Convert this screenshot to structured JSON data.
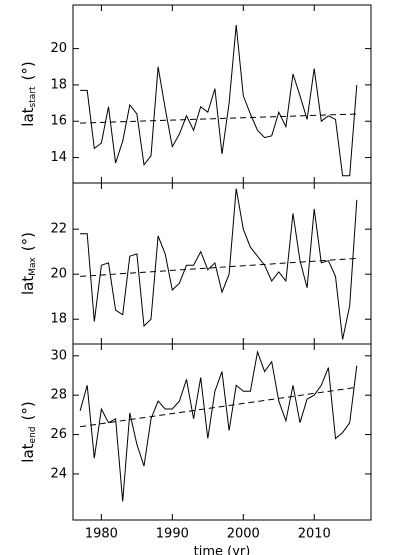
{
  "chart_data": [
    {
      "type": "line",
      "ylabel": {
        "main": "lat",
        "sub": "start",
        "unit": "(°)"
      },
      "x": [
        1977,
        1978,
        1979,
        1980,
        1981,
        1982,
        1983,
        1984,
        1985,
        1986,
        1987,
        1988,
        1989,
        1990,
        1991,
        1992,
        1993,
        1994,
        1995,
        1996,
        1997,
        1998,
        1999,
        2000,
        2001,
        2002,
        2003,
        2004,
        2005,
        2006,
        2007,
        2008,
        2009,
        2010,
        2011,
        2012,
        2013,
        2014,
        2015,
        2016
      ],
      "series": [
        {
          "color": "#000000",
          "values": [
            17.7,
            17.7,
            14.5,
            14.8,
            16.8,
            13.7,
            14.9,
            16.9,
            16.4,
            13.6,
            14.1,
            19.0,
            16.7,
            14.6,
            15.3,
            16.3,
            15.5,
            16.8,
            16.5,
            17.8,
            14.2,
            17.0,
            21.3,
            17.4,
            16.4,
            15.5,
            15.1,
            15.2,
            16.5,
            15.7,
            18.6,
            17.4,
            16.1,
            18.9,
            16.0,
            16.3,
            16.1,
            13.0,
            13.0,
            18.0
          ]
        }
      ],
      "trend": {
        "x": [
          1977,
          2016
        ],
        "values": [
          15.9,
          16.4
        ],
        "color": "#000000",
        "style": "dashed"
      },
      "xlim": [
        1976,
        2018
      ],
      "xticks": [
        1980,
        1990,
        2000,
        2010
      ],
      "ylim": [
        12.6,
        22.4
      ],
      "yticks": [
        14,
        16,
        18,
        20
      ]
    },
    {
      "type": "line",
      "ylabel": {
        "main": "lat",
        "sub": "Max",
        "unit": "(°)"
      },
      "x": [
        1977,
        1978,
        1979,
        1980,
        1981,
        1982,
        1983,
        1984,
        1985,
        1986,
        1987,
        1988,
        1989,
        1990,
        1991,
        1992,
        1993,
        1994,
        1995,
        1996,
        1997,
        1998,
        1999,
        2000,
        2001,
        2002,
        2003,
        2004,
        2005,
        2006,
        2007,
        2008,
        2009,
        2010,
        2011,
        2012,
        2013,
        2014,
        2015,
        2016
      ],
      "series": [
        {
          "color": "#000000",
          "values": [
            21.8,
            21.8,
            17.9,
            20.4,
            20.5,
            18.4,
            18.2,
            20.8,
            20.9,
            17.7,
            18.0,
            21.7,
            20.9,
            19.3,
            19.6,
            20.4,
            20.4,
            21.0,
            20.2,
            20.5,
            19.2,
            20.0,
            23.8,
            22.0,
            21.2,
            20.8,
            20.4,
            19.7,
            20.1,
            19.7,
            22.7,
            20.6,
            19.4,
            22.9,
            20.5,
            20.6,
            19.9,
            17.1,
            18.6,
            23.3
          ]
        }
      ],
      "trend": {
        "x": [
          1977,
          2016
        ],
        "values": [
          19.9,
          20.7
        ],
        "color": "#000000",
        "style": "dashed"
      },
      "xlim": [
        1976,
        2018
      ],
      "xticks": [
        1980,
        1990,
        2000,
        2010
      ],
      "ylim": [
        16.9,
        24.05
      ],
      "yticks": [
        18,
        20,
        22
      ]
    },
    {
      "type": "line",
      "ylabel": {
        "main": "lat",
        "sub": "end",
        "unit": "(°)"
      },
      "xlabel": "time (yr)",
      "x": [
        1977,
        1978,
        1979,
        1980,
        1981,
        1982,
        1983,
        1984,
        1985,
        1986,
        1987,
        1988,
        1989,
        1990,
        1991,
        1992,
        1993,
        1994,
        1995,
        1996,
        1997,
        1998,
        1999,
        2000,
        2001,
        2002,
        2003,
        2004,
        2005,
        2006,
        2007,
        2008,
        2009,
        2010,
        2011,
        2012,
        2013,
        2014,
        2015,
        2016
      ],
      "series": [
        {
          "color": "#000000",
          "values": [
            27.2,
            28.5,
            24.8,
            27.3,
            26.6,
            26.8,
            22.6,
            27.1,
            25.5,
            24.4,
            26.8,
            27.7,
            27.3,
            27.3,
            27.7,
            28.8,
            26.8,
            28.9,
            25.8,
            28.2,
            29.2,
            26.2,
            28.5,
            28.2,
            28.2,
            30.2,
            29.2,
            29.7,
            27.7,
            26.7,
            28.5,
            26.6,
            27.8,
            28.0,
            28.5,
            29.4,
            25.8,
            26.1,
            26.6,
            29.5
          ]
        }
      ],
      "trend": {
        "x": [
          1977,
          2016
        ],
        "values": [
          26.4,
          28.4
        ],
        "color": "#000000",
        "style": "dashed"
      },
      "xlim": [
        1976,
        2018
      ],
      "xticks": [
        1980,
        1990,
        2000,
        2010
      ],
      "ylim": [
        21.66,
        30.6
      ],
      "yticks": [
        24,
        26,
        28,
        30
      ]
    }
  ]
}
